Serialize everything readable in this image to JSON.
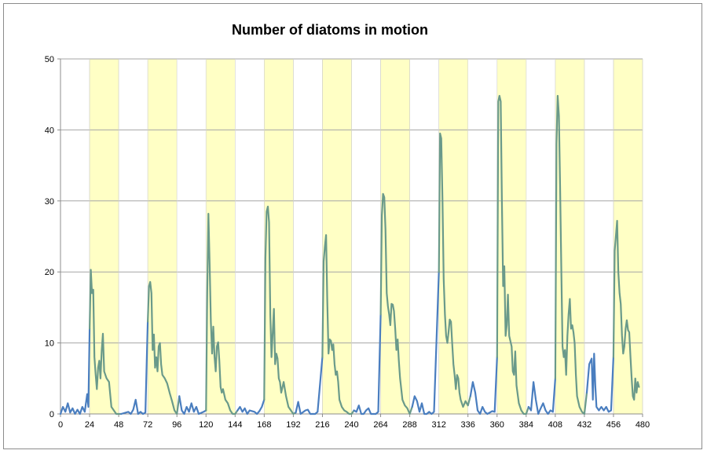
{
  "chart_data": {
    "type": "line",
    "title": "Number of diatoms in motion",
    "xlabel": "",
    "ylabel": "",
    "xlim": [
      0,
      480
    ],
    "ylim": [
      0,
      50
    ],
    "x_ticks": [
      0,
      24,
      48,
      72,
      96,
      120,
      144,
      168,
      192,
      216,
      240,
      264,
      288,
      312,
      336,
      360,
      384,
      408,
      432,
      456,
      480
    ],
    "y_ticks": [
      0,
      10,
      20,
      30,
      40,
      50
    ],
    "grid": "horizontal",
    "shaded_bands": [
      [
        24,
        48
      ],
      [
        72,
        96
      ],
      [
        120,
        144
      ],
      [
        168,
        192
      ],
      [
        216,
        240
      ],
      [
        264,
        288
      ],
      [
        312,
        336
      ],
      [
        360,
        384
      ],
      [
        408,
        432
      ],
      [
        456,
        480
      ]
    ],
    "colors": {
      "dark_period_line": "#4a7ebf",
      "light_period_line": "#6a9a8a",
      "band_fill": "#ffffc5",
      "grid": "#a6a6a6"
    },
    "series": [
      {
        "name": "diatoms in motion",
        "points": [
          [
            0,
            0
          ],
          [
            2,
            1
          ],
          [
            4,
            0.3
          ],
          [
            6,
            1.5
          ],
          [
            8,
            0.2
          ],
          [
            10,
            0.8
          ],
          [
            12,
            0
          ],
          [
            14,
            0.6
          ],
          [
            16,
            0
          ],
          [
            18,
            1
          ],
          [
            20,
            0.3
          ],
          [
            22,
            2.8
          ],
          [
            23,
            1
          ],
          [
            24,
            12
          ],
          [
            25,
            20.3
          ],
          [
            26,
            17
          ],
          [
            27,
            17.5
          ],
          [
            28,
            8
          ],
          [
            29,
            5.5
          ],
          [
            30,
            3.5
          ],
          [
            31,
            6.5
          ],
          [
            32,
            7.5
          ],
          [
            33,
            5
          ],
          [
            34,
            9
          ],
          [
            35,
            11.3
          ],
          [
            36,
            6
          ],
          [
            38,
            5
          ],
          [
            40,
            4.5
          ],
          [
            42,
            1
          ],
          [
            44,
            0.5
          ],
          [
            46,
            0
          ],
          [
            48,
            0
          ],
          [
            50,
            0
          ],
          [
            56,
            0.3
          ],
          [
            58,
            0
          ],
          [
            60,
            0.6
          ],
          [
            62,
            2
          ],
          [
            64,
            0
          ],
          [
            66,
            0.3
          ],
          [
            68,
            0
          ],
          [
            70,
            0.2
          ],
          [
            72,
            13
          ],
          [
            73,
            18
          ],
          [
            74,
            18.6
          ],
          [
            75,
            17
          ],
          [
            76,
            9
          ],
          [
            77,
            11.2
          ],
          [
            78,
            6.5
          ],
          [
            79,
            8
          ],
          [
            80,
            6
          ],
          [
            81,
            9.5
          ],
          [
            82,
            10
          ],
          [
            83,
            7
          ],
          [
            84,
            5.5
          ],
          [
            86,
            5
          ],
          [
            88,
            4.3
          ],
          [
            90,
            3
          ],
          [
            92,
            1.8
          ],
          [
            94,
            0.5
          ],
          [
            96,
            0
          ],
          [
            98,
            2.5
          ],
          [
            100,
            0.5
          ],
          [
            102,
            0
          ],
          [
            104,
            1
          ],
          [
            106,
            0.3
          ],
          [
            108,
            1.5
          ],
          [
            110,
            0.3
          ],
          [
            112,
            1
          ],
          [
            114,
            0
          ],
          [
            118,
            0.3
          ],
          [
            120,
            0.5
          ],
          [
            121,
            17
          ],
          [
            122,
            28.2
          ],
          [
            123,
            21
          ],
          [
            124,
            13
          ],
          [
            125,
            8.5
          ],
          [
            126,
            12.3
          ],
          [
            127,
            8
          ],
          [
            128,
            6
          ],
          [
            129,
            9.5
          ],
          [
            130,
            10.1
          ],
          [
            131,
            7.5
          ],
          [
            132,
            3.8
          ],
          [
            133,
            3
          ],
          [
            134,
            3.5
          ],
          [
            136,
            2
          ],
          [
            138,
            1.5
          ],
          [
            140,
            0.5
          ],
          [
            142,
            0
          ],
          [
            144,
            0
          ],
          [
            146,
            0.5
          ],
          [
            148,
            1
          ],
          [
            150,
            0.3
          ],
          [
            152,
            0.8
          ],
          [
            154,
            0
          ],
          [
            156,
            0.5
          ],
          [
            158,
            0.4
          ],
          [
            160,
            0.3
          ],
          [
            162,
            0
          ],
          [
            164,
            0.4
          ],
          [
            166,
            1
          ],
          [
            168,
            2
          ],
          [
            169,
            22
          ],
          [
            170,
            28.5
          ],
          [
            171,
            29.2
          ],
          [
            172,
            27
          ],
          [
            173,
            14
          ],
          [
            174,
            8
          ],
          [
            175,
            11.5
          ],
          [
            176,
            14.8
          ],
          [
            177,
            7
          ],
          [
            178,
            8.5
          ],
          [
            179,
            7.8
          ],
          [
            180,
            5
          ],
          [
            181,
            4.5
          ],
          [
            182,
            3
          ],
          [
            184,
            4.5
          ],
          [
            186,
            2.5
          ],
          [
            188,
            1
          ],
          [
            190,
            0.5
          ],
          [
            192,
            0
          ],
          [
            194,
            0.2
          ],
          [
            196,
            1.7
          ],
          [
            198,
            0
          ],
          [
            202,
            0.5
          ],
          [
            204,
            0.6
          ],
          [
            206,
            0
          ],
          [
            210,
            0
          ],
          [
            212,
            0.3
          ],
          [
            216,
            8
          ],
          [
            217,
            21.5
          ],
          [
            218,
            23.5
          ],
          [
            219,
            25.2
          ],
          [
            220,
            16
          ],
          [
            221,
            8.5
          ],
          [
            222,
            10.5
          ],
          [
            223,
            10.3
          ],
          [
            224,
            9
          ],
          [
            225,
            9.8
          ],
          [
            226,
            7
          ],
          [
            227,
            5.5
          ],
          [
            228,
            6
          ],
          [
            229,
            4.5
          ],
          [
            230,
            2
          ],
          [
            232,
            1
          ],
          [
            234,
            0.5
          ],
          [
            236,
            0.3
          ],
          [
            238,
            0
          ],
          [
            240,
            0
          ],
          [
            242,
            0.5
          ],
          [
            244,
            0.3
          ],
          [
            246,
            1.2
          ],
          [
            248,
            0
          ],
          [
            250,
            0
          ],
          [
            252,
            0.5
          ],
          [
            254,
            0.8
          ],
          [
            256,
            0
          ],
          [
            260,
            0
          ],
          [
            262,
            0.3
          ],
          [
            264,
            14
          ],
          [
            265,
            28
          ],
          [
            266,
            31
          ],
          [
            267,
            30.5
          ],
          [
            268,
            26
          ],
          [
            269,
            17
          ],
          [
            270,
            15.2
          ],
          [
            271,
            14
          ],
          [
            272,
            12.5
          ],
          [
            273,
            15.5
          ],
          [
            274,
            15.4
          ],
          [
            275,
            14.5
          ],
          [
            276,
            12
          ],
          [
            277,
            9
          ],
          [
            278,
            10.5
          ],
          [
            279,
            7.5
          ],
          [
            280,
            5
          ],
          [
            282,
            2
          ],
          [
            284,
            1.2
          ],
          [
            286,
            0.8
          ],
          [
            288,
            0
          ],
          [
            290,
            1
          ],
          [
            292,
            2.5
          ],
          [
            294,
            1.8
          ],
          [
            296,
            0.3
          ],
          [
            298,
            1.5
          ],
          [
            300,
            0
          ],
          [
            302,
            0
          ],
          [
            304,
            0.3
          ],
          [
            306,
            0
          ],
          [
            308,
            0.3
          ],
          [
            312,
            20
          ],
          [
            313,
            39.5
          ],
          [
            314,
            38.8
          ],
          [
            315,
            30
          ],
          [
            316,
            19
          ],
          [
            317,
            14
          ],
          [
            318,
            11
          ],
          [
            319,
            10
          ],
          [
            320,
            11.5
          ],
          [
            321,
            13.3
          ],
          [
            322,
            13
          ],
          [
            323,
            10
          ],
          [
            324,
            7
          ],
          [
            325,
            5.5
          ],
          [
            326,
            3.5
          ],
          [
            327,
            5.5
          ],
          [
            328,
            5
          ],
          [
            329,
            3
          ],
          [
            330,
            2
          ],
          [
            332,
            1
          ],
          [
            334,
            1.8
          ],
          [
            336,
            1.2
          ],
          [
            338,
            2.5
          ],
          [
            340,
            4.5
          ],
          [
            342,
            3
          ],
          [
            344,
            0.5
          ],
          [
            346,
            0
          ],
          [
            348,
            1
          ],
          [
            350,
            0.3
          ],
          [
            352,
            0
          ],
          [
            356,
            0.4
          ],
          [
            358,
            0.3
          ],
          [
            360,
            8
          ],
          [
            361,
            44
          ],
          [
            362,
            44.8
          ],
          [
            363,
            44
          ],
          [
            364,
            30
          ],
          [
            365,
            18
          ],
          [
            366,
            20.8
          ],
          [
            367,
            11
          ],
          [
            368,
            12.5
          ],
          [
            369,
            16.8
          ],
          [
            370,
            11
          ],
          [
            372,
            9.5
          ],
          [
            373,
            6
          ],
          [
            374,
            5.5
          ],
          [
            375,
            8.8
          ],
          [
            376,
            4
          ],
          [
            378,
            1.5
          ],
          [
            380,
            0.5
          ],
          [
            382,
            0
          ],
          [
            384,
            0
          ],
          [
            386,
            1
          ],
          [
            388,
            0.5
          ],
          [
            390,
            4.5
          ],
          [
            392,
            2
          ],
          [
            394,
            0
          ],
          [
            396,
            0.8
          ],
          [
            398,
            1.5
          ],
          [
            400,
            0.5
          ],
          [
            402,
            0
          ],
          [
            404,
            0.5
          ],
          [
            406,
            0.3
          ],
          [
            408,
            5
          ],
          [
            409,
            38
          ],
          [
            410,
            44.8
          ],
          [
            411,
            42
          ],
          [
            412,
            32
          ],
          [
            413,
            20
          ],
          [
            414,
            9.5
          ],
          [
            415,
            8
          ],
          [
            416,
            9
          ],
          [
            417,
            5.5
          ],
          [
            418,
            11
          ],
          [
            419,
            14
          ],
          [
            420,
            16.2
          ],
          [
            421,
            12
          ],
          [
            422,
            12.5
          ],
          [
            423,
            11.5
          ],
          [
            424,
            10
          ],
          [
            425,
            5.5
          ],
          [
            426,
            2.5
          ],
          [
            428,
            1
          ],
          [
            430,
            0.3
          ],
          [
            432,
            0
          ],
          [
            434,
            3
          ],
          [
            436,
            7
          ],
          [
            438,
            7.8
          ],
          [
            439,
            2
          ],
          [
            440,
            8.5
          ],
          [
            441,
            4
          ],
          [
            442,
            1
          ],
          [
            444,
            0.5
          ],
          [
            446,
            1
          ],
          [
            448,
            0.5
          ],
          [
            450,
            1
          ],
          [
            452,
            0.3
          ],
          [
            454,
            0.5
          ],
          [
            456,
            8
          ],
          [
            457,
            23
          ],
          [
            458,
            25
          ],
          [
            459,
            27.2
          ],
          [
            460,
            20
          ],
          [
            461,
            17
          ],
          [
            462,
            15.5
          ],
          [
            463,
            11
          ],
          [
            464,
            8.5
          ],
          [
            465,
            9.5
          ],
          [
            466,
            12
          ],
          [
            467,
            13.2
          ],
          [
            468,
            11.8
          ],
          [
            469,
            11.5
          ],
          [
            470,
            8
          ],
          [
            471,
            5
          ],
          [
            472,
            2.5
          ],
          [
            473,
            2
          ],
          [
            474,
            5
          ],
          [
            475,
            3
          ],
          [
            476,
            4.5
          ],
          [
            477,
            3.8
          ]
        ],
        "light_period_threshold": "inside shaded bands the line is drawn in the teal color"
      }
    ]
  }
}
